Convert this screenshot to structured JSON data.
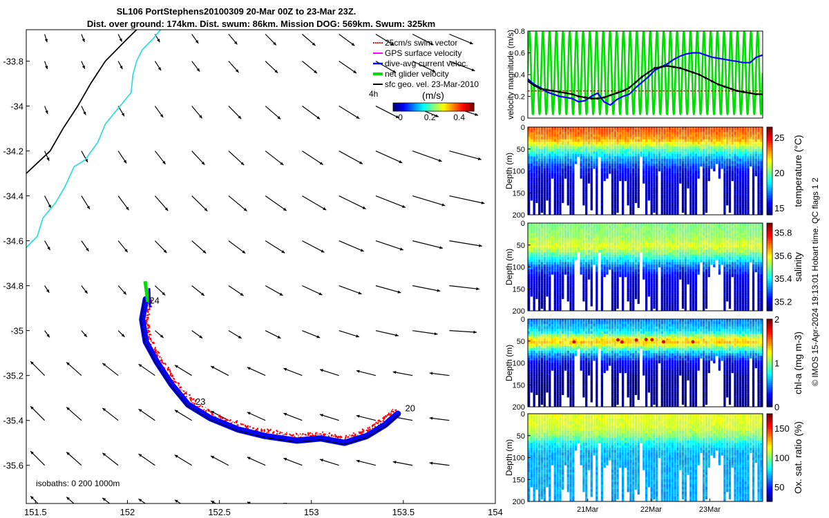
{
  "title": {
    "line1": "SL106 PortStephens20100309 20-Mar 00Z to 23-Mar 23Z.",
    "line2": "Dist. over ground: 174km. Dist. swum: 86km. Mission DOG: 569km. Swum: 325km"
  },
  "chart_data": [
    {
      "id": "map",
      "type": "scatter",
      "xlabel": "",
      "ylabel": "",
      "xlim": [
        151.45,
        154.0
      ],
      "ylim": [
        -35.77,
        -33.66
      ],
      "xticks": [
        "151.5",
        "152",
        "152.5",
        "153",
        "153.5",
        "154"
      ],
      "yticks": [
        "-33.8",
        "-34",
        "-34.2",
        "-34.4",
        "-34.6",
        "-34.8",
        "-35",
        "-35.2",
        "-35.4",
        "-35.6"
      ],
      "ytick_values": [
        -33.8,
        -34.0,
        -34.2,
        -34.4,
        -34.6,
        -34.8,
        -35.0,
        -35.2,
        -35.4,
        -35.6
      ],
      "xtick_values": [
        151.5,
        152.0,
        152.5,
        153.0,
        153.5,
        154.0
      ],
      "legend": [
        {
          "label": "25cm/s swim vector",
          "color": "#ff0000"
        },
        {
          "label": "GPS surface velocity",
          "color": "#ff00ff"
        },
        {
          "label": "dive-avg current veloc.",
          "color": "#0000ff"
        },
        {
          "label": "net glider velocity",
          "color": "#00dd00"
        },
        {
          "label": "sfc geo. vel. 23-Mar-2010",
          "color": "#000000"
        }
      ],
      "colorbar": {
        "title": "(m/s)",
        "label4h": "4h",
        "ticks": [
          "0",
          "0.2",
          "0.4"
        ],
        "tick_values": [
          0,
          0.2,
          0.4
        ],
        "range": [
          -0.05,
          0.5
        ]
      },
      "isobath_label": "isobaths: 0   200  1000m",
      "track_labels": [
        {
          "text": "24",
          "lon": 152.12,
          "lat": -34.88
        },
        {
          "text": "23",
          "lon": 152.37,
          "lat": -35.33
        },
        {
          "text": "20",
          "lon": 153.51,
          "lat": -35.36
        }
      ],
      "track": [
        [
          152.1,
          -34.86
        ],
        [
          152.08,
          -34.95
        ],
        [
          152.1,
          -35.05
        ],
        [
          152.16,
          -35.14
        ],
        [
          152.24,
          -35.24
        ],
        [
          152.33,
          -35.33
        ],
        [
          152.45,
          -35.39
        ],
        [
          152.6,
          -35.44
        ],
        [
          152.75,
          -35.47
        ],
        [
          152.92,
          -35.49
        ],
        [
          153.05,
          -35.48
        ],
        [
          153.18,
          -35.5
        ],
        [
          153.3,
          -35.47
        ],
        [
          153.4,
          -35.42
        ],
        [
          153.47,
          -35.37
        ]
      ],
      "coast_isobath0": [
        [
          151.45,
          -34.3
        ],
        [
          151.58,
          -34.2
        ],
        [
          151.65,
          -34.1
        ],
        [
          151.73,
          -34.0
        ],
        [
          151.8,
          -33.9
        ],
        [
          151.88,
          -33.8
        ],
        [
          152.0,
          -33.7
        ],
        [
          152.05,
          -33.66
        ]
      ],
      "coast_isobath200": [
        [
          151.45,
          -34.63
        ],
        [
          151.51,
          -34.58
        ],
        [
          151.54,
          -34.5
        ],
        [
          151.61,
          -34.43
        ],
        [
          151.66,
          -34.36
        ],
        [
          151.71,
          -34.27
        ],
        [
          151.77,
          -34.24
        ],
        [
          151.84,
          -34.16
        ],
        [
          151.88,
          -34.08
        ],
        [
          151.93,
          -34.03
        ],
        [
          151.98,
          -33.98
        ],
        [
          152.02,
          -33.94
        ],
        [
          152.03,
          -33.86
        ],
        [
          152.05,
          -33.8
        ],
        [
          152.08,
          -33.75
        ],
        [
          152.14,
          -33.7
        ],
        [
          152.18,
          -33.66
        ]
      ]
    },
    {
      "id": "velocity",
      "type": "line",
      "ylabel": "velocity magnitude (m/s)",
      "ylim": [
        0,
        0.8
      ],
      "yticks": [
        "0",
        "0.2",
        "0.4",
        "0.6",
        "0.8"
      ],
      "ytick_values": [
        0,
        0.2,
        0.4,
        0.6,
        0.8
      ],
      "series": [
        {
          "name": "dive-avg current veloc.",
          "color": "#0000ff",
          "values": [
            0.36,
            0.31,
            0.28,
            0.24,
            0.22,
            0.2,
            0.19,
            0.18,
            0.15,
            0.16,
            0.2,
            0.23,
            0.15,
            0.12,
            0.17,
            0.2,
            0.22,
            0.28,
            0.33,
            0.38,
            0.44,
            0.47,
            0.5,
            0.54,
            0.57,
            0.59,
            0.6,
            0.6,
            0.58,
            0.56,
            0.55,
            0.54,
            0.53,
            0.52,
            0.51,
            0.51,
            0.56,
            0.58
          ]
        },
        {
          "name": "sfc geo. vel.",
          "color": "#000000",
          "values": [
            0.34,
            0.3,
            0.27,
            0.26,
            0.25,
            0.24,
            0.23,
            0.22,
            0.2,
            0.19,
            0.18,
            0.18,
            0.19,
            0.21,
            0.23,
            0.25,
            0.28,
            0.33,
            0.38,
            0.42,
            0.46,
            0.47,
            0.48,
            0.47,
            0.46,
            0.44,
            0.42,
            0.4,
            0.37,
            0.34,
            0.31,
            0.29,
            0.27,
            0.25,
            0.24,
            0.23,
            0.22,
            0.22
          ]
        },
        {
          "name": "25cm/s swim vector",
          "color": "#ff0000",
          "values": [
            0.25,
            0.25
          ]
        },
        {
          "name": "net glider velocity",
          "color": "#00dd00",
          "oscillation": {
            "cycles": 35,
            "min": 0.03,
            "max": 0.8
          }
        }
      ]
    },
    {
      "id": "temperature",
      "type": "heatmap",
      "ylabel": "Depth (m)",
      "yticks": [
        "0",
        "50",
        "100",
        "150",
        "200"
      ],
      "ytick_values": [
        0,
        50,
        100,
        150,
        200
      ],
      "colorbar": {
        "label": "temperature (°C)",
        "ticks": [
          "15",
          "20",
          "25"
        ],
        "tick_values": [
          15,
          20,
          25
        ],
        "range": [
          14,
          26.5
        ]
      },
      "profile": [
        [
          0,
          24
        ],
        [
          25,
          23
        ],
        [
          40,
          21
        ],
        [
          55,
          19
        ],
        [
          70,
          17.5
        ],
        [
          90,
          16
        ],
        [
          120,
          15
        ],
        [
          200,
          14.5
        ]
      ]
    },
    {
      "id": "salinity",
      "type": "heatmap",
      "ylabel": "Depth (m)",
      "yticks": [
        "0",
        "50",
        "100",
        "150",
        "200"
      ],
      "ytick_values": [
        0,
        50,
        100,
        150,
        200
      ],
      "colorbar": {
        "label": "salinity",
        "ticks": [
          "35.2",
          "35.4",
          "35.6",
          "35.8"
        ],
        "tick_values": [
          35.2,
          35.4,
          35.6,
          35.8
        ],
        "range": [
          35.12,
          35.88
        ]
      },
      "profile": [
        [
          0,
          35.5
        ],
        [
          30,
          35.52
        ],
        [
          50,
          35.58
        ],
        [
          65,
          35.5
        ],
        [
          80,
          35.4
        ],
        [
          95,
          35.3
        ],
        [
          120,
          35.2
        ],
        [
          200,
          35.15
        ]
      ]
    },
    {
      "id": "chla",
      "type": "heatmap",
      "ylabel": "Depth (m)",
      "yticks": [
        "0",
        "50",
        "100",
        "150",
        "200"
      ],
      "ytick_values": [
        0,
        50,
        100,
        150,
        200
      ],
      "colorbar": {
        "label": "chl-a (mg m-3)",
        "ticks": [
          "0",
          "1",
          "2"
        ],
        "tick_values": [
          0,
          1,
          2
        ],
        "range": [
          0,
          2
        ]
      },
      "profile": [
        [
          0,
          0.5
        ],
        [
          25,
          0.7
        ],
        [
          40,
          1.2
        ],
        [
          50,
          1.4
        ],
        [
          62,
          1.0
        ],
        [
          75,
          0.6
        ],
        [
          95,
          0.25
        ],
        [
          130,
          0.05
        ],
        [
          200,
          0.0
        ]
      ]
    },
    {
      "id": "oxygen",
      "type": "heatmap",
      "ylabel": "Depth (m)",
      "yticks": [
        "0",
        "50",
        "100",
        "150",
        "200"
      ],
      "ytick_values": [
        0,
        50,
        100,
        150,
        200
      ],
      "xticks": [
        "21Mar",
        "22Mar",
        "23Mar"
      ],
      "colorbar": {
        "label": "Ox. sat. ratio (%)",
        "ticks": [
          "50",
          "100",
          "150"
        ],
        "tick_values": [
          50,
          100,
          150
        ],
        "range": [
          25,
          175
        ]
      },
      "profile": [
        [
          0,
          115
        ],
        [
          30,
          112
        ],
        [
          50,
          100
        ],
        [
          65,
          80
        ],
        [
          85,
          70
        ],
        [
          200,
          68
        ]
      ]
    }
  ],
  "side_note": "© IMOS 15-Apr-2024 19:13:01 Hobart time. QC flags 1  2",
  "colors": {
    "bathy0": "#000000",
    "bathy200": "#33dddd",
    "swim": "#ff0000",
    "current": "#0000ff",
    "glider": "#00dd00"
  }
}
